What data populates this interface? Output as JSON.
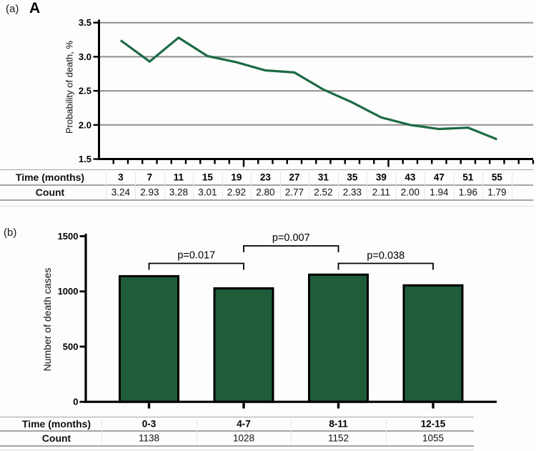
{
  "figure": {
    "panel_a_tag": "(a)",
    "panel_a_letter": "A",
    "panel_b_tag": "(b)"
  },
  "colors": {
    "line_green": "#1d6a45",
    "bar_green": "#1f5c3a",
    "grid_gray": "#8f8f8f",
    "axis_black": "#000000",
    "table_line_gray": "#a4a4a4"
  },
  "chart_data": [
    {
      "type": "line",
      "title": "",
      "xlabel": "Time (months)",
      "ylabel": "Probability of death, %",
      "x": [
        3,
        7,
        11,
        15,
        19,
        23,
        27,
        31,
        35,
        39,
        43,
        47,
        51,
        55
      ],
      "values": [
        3.24,
        2.93,
        3.28,
        3.01,
        2.92,
        2.8,
        2.77,
        2.52,
        2.33,
        2.11,
        2.0,
        1.94,
        1.96,
        1.79
      ],
      "ylim": [
        1.5,
        3.5
      ],
      "xlim": [
        0,
        60
      ],
      "yticks": [
        "1.5",
        "2.0",
        "2.5",
        "3.0",
        "3.5"
      ],
      "grid": true,
      "legend_position": "none",
      "table": {
        "row1_label": "Time (months)",
        "row2_label": "Count",
        "row1_values": [
          "3",
          "7",
          "11",
          "15",
          "19",
          "23",
          "27",
          "31",
          "35",
          "39",
          "43",
          "47",
          "51",
          "55"
        ],
        "row2_values": [
          "3.24",
          "2.93",
          "3.28",
          "3.01",
          "2.92",
          "2.80",
          "2.77",
          "2.52",
          "2.33",
          "2.11",
          "2.00",
          "1.94",
          "1.96",
          "1.79"
        ]
      }
    },
    {
      "type": "bar",
      "title": "",
      "xlabel": "Time (months)",
      "ylabel": "Number of death cases",
      "categories": [
        "0-3",
        "4-7",
        "8-11",
        "12-15"
      ],
      "values": [
        1138,
        1028,
        1152,
        1055
      ],
      "ylim": [
        0,
        1500
      ],
      "yticks": [
        "0",
        "500",
        "1000",
        "1500"
      ],
      "grid": false,
      "legend_position": "none",
      "significance": [
        {
          "label": "p=0.017",
          "from": 0,
          "to": 1
        },
        {
          "label": "p=0.007",
          "from": 1,
          "to": 2
        },
        {
          "label": "p=0.038",
          "from": 2,
          "to": 3
        }
      ],
      "table": {
        "row1_label": "Time (months)",
        "row2_label": "Count",
        "row1_values": [
          "0-3",
          "4-7",
          "8-11",
          "12-15"
        ],
        "row2_values": [
          "1138",
          "1028",
          "1152",
          "1055"
        ]
      }
    }
  ]
}
